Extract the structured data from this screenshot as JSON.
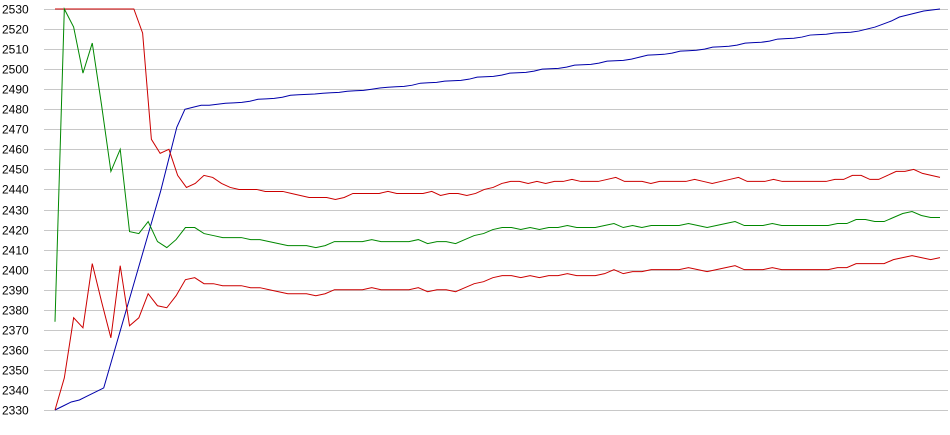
{
  "chart_data": {
    "type": "line",
    "title": "",
    "xlabel": "",
    "ylabel": "",
    "x_count": 121,
    "ylim": [
      2330,
      2530
    ],
    "yticks": [
      2330,
      2340,
      2350,
      2360,
      2370,
      2380,
      2390,
      2400,
      2410,
      2420,
      2430,
      2440,
      2450,
      2460,
      2470,
      2480,
      2490,
      2500,
      2510,
      2520,
      2530
    ],
    "grid": "horizontal",
    "legend": "none",
    "series": [
      {
        "color": "#0000aa",
        "values": [
          2330,
          2332,
          2334,
          2335,
          2337,
          2339,
          2341,
          2355,
          2369,
          2383,
          2397,
          2411,
          2425,
          2439,
          2455,
          2471,
          2480,
          2481,
          2482,
          2482,
          2482.5,
          2483,
          2483.2,
          2483.4,
          2484,
          2485,
          2485.2,
          2485.4,
          2486,
          2487,
          2487.2,
          2487.4,
          2487.6,
          2488,
          2488.2,
          2488.4,
          2489,
          2489.2,
          2489.4,
          2490,
          2490.6,
          2491,
          2491.2,
          2491.4,
          2492,
          2493,
          2493.2,
          2493.4,
          2494,
          2494.2,
          2494.4,
          2495,
          2496,
          2496.2,
          2496.4,
          2497,
          2498,
          2498.2,
          2498.4,
          2499,
          2500,
          2500.2,
          2500.4,
          2501,
          2502,
          2502.2,
          2502.4,
          2503,
          2504,
          2504.2,
          2504.4,
          2505,
          2506,
          2507,
          2507.2,
          2507.4,
          2508,
          2509,
          2509.2,
          2509.4,
          2510,
          2511,
          2511.2,
          2511.4,
          2512,
          2513,
          2513.2,
          2513.4,
          2514,
          2515,
          2515.2,
          2515.4,
          2516,
          2517,
          2517.2,
          2517.4,
          2518,
          2518.2,
          2518.4,
          2519,
          2520,
          2521,
          2522.5,
          2524,
          2526,
          2527,
          2528,
          2529,
          2529.5,
          2530
        ]
      },
      {
        "color": "#cc0000",
        "values": [
          2530,
          2530,
          2530,
          2530,
          2530,
          2530,
          2530,
          2530,
          2530,
          2530,
          2518,
          2465,
          2458,
          2460,
          2447,
          2441,
          2443,
          2447,
          2446,
          2443,
          2441,
          2440,
          2440,
          2440,
          2439,
          2439,
          2439,
          2438,
          2437,
          2436,
          2436,
          2436,
          2435,
          2436,
          2438,
          2438,
          2438,
          2438,
          2439,
          2438,
          2438,
          2438,
          2438,
          2439,
          2437,
          2438,
          2438,
          2437,
          2438,
          2440,
          2441,
          2443,
          2444,
          2444,
          2443,
          2444,
          2443,
          2444,
          2444,
          2445,
          2444,
          2444,
          2444,
          2445,
          2446,
          2444,
          2444,
          2444,
          2443,
          2444,
          2444,
          2444,
          2444,
          2445,
          2444,
          2443,
          2444,
          2445,
          2446,
          2444,
          2444,
          2444,
          2445,
          2444,
          2444,
          2444,
          2444,
          2444,
          2444,
          2445,
          2445,
          2447,
          2447,
          2445,
          2445,
          2447,
          2449,
          2449,
          2450,
          2448,
          2447,
          2446
        ]
      },
      {
        "color": "#008800",
        "values": [
          2374,
          2530,
          2521,
          2498,
          2513,
          2482,
          2449,
          2460,
          2419,
          2418,
          2424,
          2414,
          2411,
          2415,
          2421,
          2421,
          2418,
          2417,
          2416,
          2416,
          2416,
          2415,
          2415,
          2414,
          2413,
          2412,
          2412,
          2412,
          2411,
          2412,
          2414,
          2414,
          2414,
          2414,
          2415,
          2414,
          2414,
          2414,
          2414,
          2415,
          2413,
          2414,
          2414,
          2413,
          2415,
          2417,
          2418,
          2420,
          2421,
          2421,
          2420,
          2421,
          2420,
          2421,
          2421,
          2422,
          2421,
          2421,
          2421,
          2422,
          2423,
          2421,
          2422,
          2421,
          2422,
          2422,
          2422,
          2422,
          2423,
          2422,
          2421,
          2422,
          2423,
          2424,
          2422,
          2422,
          2422,
          2423,
          2422,
          2422,
          2422,
          2422,
          2422,
          2422,
          2423,
          2423,
          2425,
          2425,
          2424,
          2424,
          2426,
          2428,
          2429,
          2427,
          2426,
          2426
        ]
      },
      {
        "color": "#cc0000",
        "values": [
          2330,
          2346,
          2376,
          2371,
          2403,
          2384,
          2366,
          2402,
          2372,
          2376,
          2388,
          2382,
          2381,
          2387,
          2395,
          2396,
          2393,
          2393,
          2392,
          2392,
          2392,
          2391,
          2391,
          2390,
          2389,
          2388,
          2388,
          2388,
          2387,
          2388,
          2390,
          2390,
          2390,
          2390,
          2391,
          2390,
          2390,
          2390,
          2390,
          2391,
          2389,
          2390,
          2390,
          2389,
          2391,
          2393,
          2394,
          2396,
          2397,
          2397,
          2396,
          2397,
          2396,
          2397,
          2397,
          2398,
          2397,
          2397,
          2397,
          2398,
          2400,
          2398,
          2399,
          2399,
          2400,
          2400,
          2400,
          2400,
          2401,
          2400,
          2399,
          2400,
          2401,
          2402,
          2400,
          2400,
          2400,
          2401,
          2400,
          2400,
          2400,
          2400,
          2400,
          2400,
          2401,
          2401,
          2403,
          2403,
          2403,
          2403,
          2405,
          2406,
          2407,
          2406,
          2405,
          2406
        ]
      }
    ]
  }
}
